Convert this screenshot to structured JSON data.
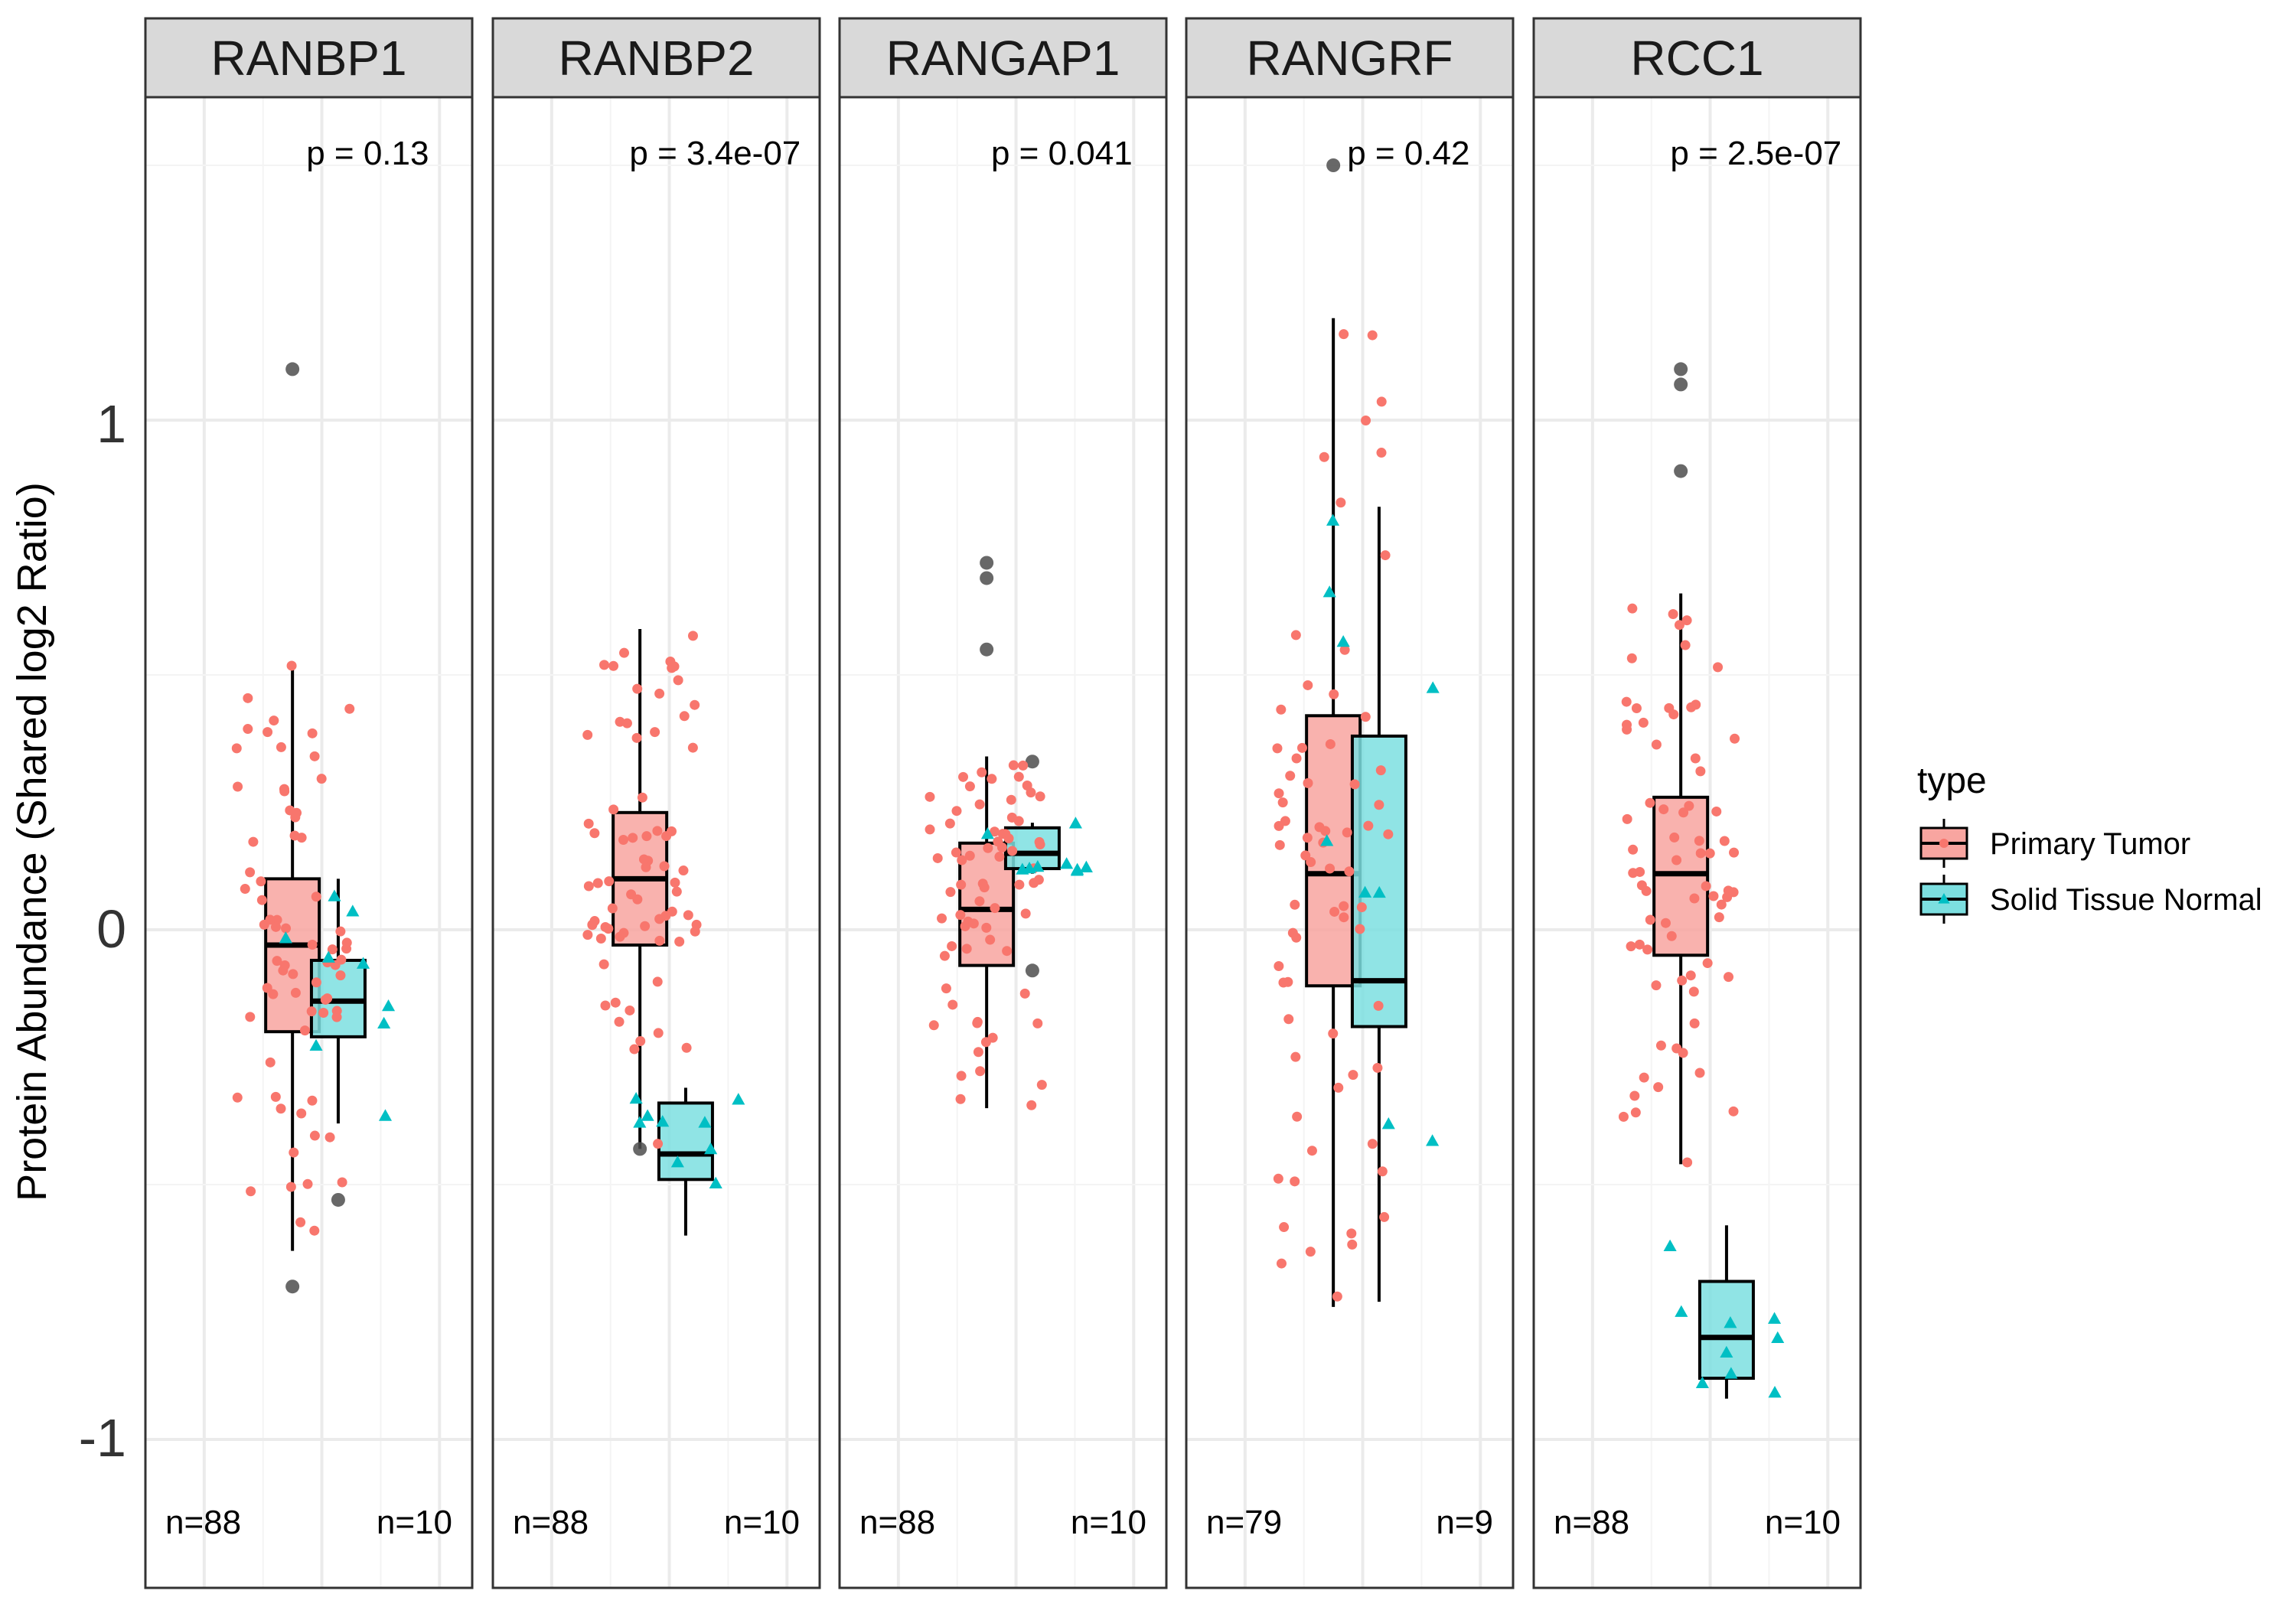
{
  "chart_data": {
    "type": "boxplot",
    "ylabel": "Protein Abundance (Shared log2 Ratio)",
    "ylim": [
      -1.3,
      1.58
    ],
    "yticks": [
      -1,
      0,
      1
    ],
    "ytick_labels": [
      "-1",
      "0",
      "1"
    ],
    "grid": true,
    "legend": {
      "title": "type",
      "position": "right",
      "entries": [
        {
          "label": "Primary Tumor",
          "fill": "#F8A5A0",
          "point": "#F8766D",
          "shape": "circle"
        },
        {
          "label": "Solid Tissue Normal",
          "fill": "#7CDFE0",
          "point": "#00BFC4",
          "shape": "triangle"
        }
      ]
    },
    "colors": {
      "tumor_fill": "#F8A5A0",
      "tumor_point": "#F8766D",
      "normal_fill": "#7CDFE0",
      "normal_point": "#00BFC4",
      "strip_bg": "#D9D9D9",
      "grid_major": "#EBEBEB",
      "grid_minor": "#F4F4F4",
      "outlier": "#4D4D4D"
    },
    "panels": [
      {
        "gene": "RANBP1",
        "p_label": "p = 0.13",
        "n_tumor": "n=88",
        "n_normal": "n=10",
        "tumor": {
          "q1": -0.2,
          "median": -0.03,
          "q3": 0.1,
          "whisker_low": -0.63,
          "whisker_high": 0.52,
          "outliers": [
            1.1,
            -0.7
          ]
        },
        "normal": {
          "q1": -0.21,
          "median": -0.14,
          "q3": -0.06,
          "whisker_low": -0.38,
          "whisker_high": 0.1,
          "outliers": [
            -0.53
          ]
        }
      },
      {
        "gene": "RANBP2",
        "p_label": "p = 3.4e-07",
        "n_tumor": "n=88",
        "n_normal": "n=10",
        "tumor": {
          "q1": -0.03,
          "median": 0.1,
          "q3": 0.23,
          "whisker_low": -0.43,
          "whisker_high": 0.59,
          "outliers": [
            -0.43
          ]
        },
        "normal": {
          "q1": -0.49,
          "median": -0.44,
          "q3": -0.34,
          "whisker_low": -0.6,
          "whisker_high": -0.31,
          "outliers": []
        }
      },
      {
        "gene": "RANGAP1",
        "p_label": "p = 0.041",
        "n_tumor": "n=88",
        "n_normal": "n=10",
        "tumor": {
          "q1": -0.07,
          "median": 0.04,
          "q3": 0.17,
          "whisker_low": -0.35,
          "whisker_high": 0.34,
          "outliers": [
            0.72,
            0.69,
            0.55
          ]
        },
        "normal": {
          "q1": 0.12,
          "median": 0.15,
          "q3": 0.2,
          "whisker_low": 0.11,
          "whisker_high": 0.21,
          "outliers": [
            0.33,
            -0.08
          ]
        }
      },
      {
        "gene": "RANGRF",
        "p_label": "p = 0.42",
        "n_tumor": "n=79",
        "n_normal": "n=9",
        "tumor": {
          "q1": -0.11,
          "median": 0.11,
          "q3": 0.42,
          "whisker_low": -0.74,
          "whisker_high": 1.2,
          "outliers": [
            1.5
          ]
        },
        "normal": {
          "q1": -0.19,
          "median": -0.1,
          "q3": 0.38,
          "whisker_low": -0.73,
          "whisker_high": 0.83,
          "outliers": []
        }
      },
      {
        "gene": "RCC1",
        "p_label": "p = 2.5e-07",
        "n_tumor": "n=88",
        "n_normal": "n=10",
        "tumor": {
          "q1": -0.05,
          "median": 0.11,
          "q3": 0.26,
          "whisker_low": -0.46,
          "whisker_high": 0.66,
          "outliers": [
            1.1,
            1.07,
            0.9
          ]
        },
        "normal": {
          "q1": -0.88,
          "median": -0.8,
          "q3": -0.69,
          "whisker_low": -0.92,
          "whisker_high": -0.58,
          "outliers": []
        }
      }
    ]
  }
}
